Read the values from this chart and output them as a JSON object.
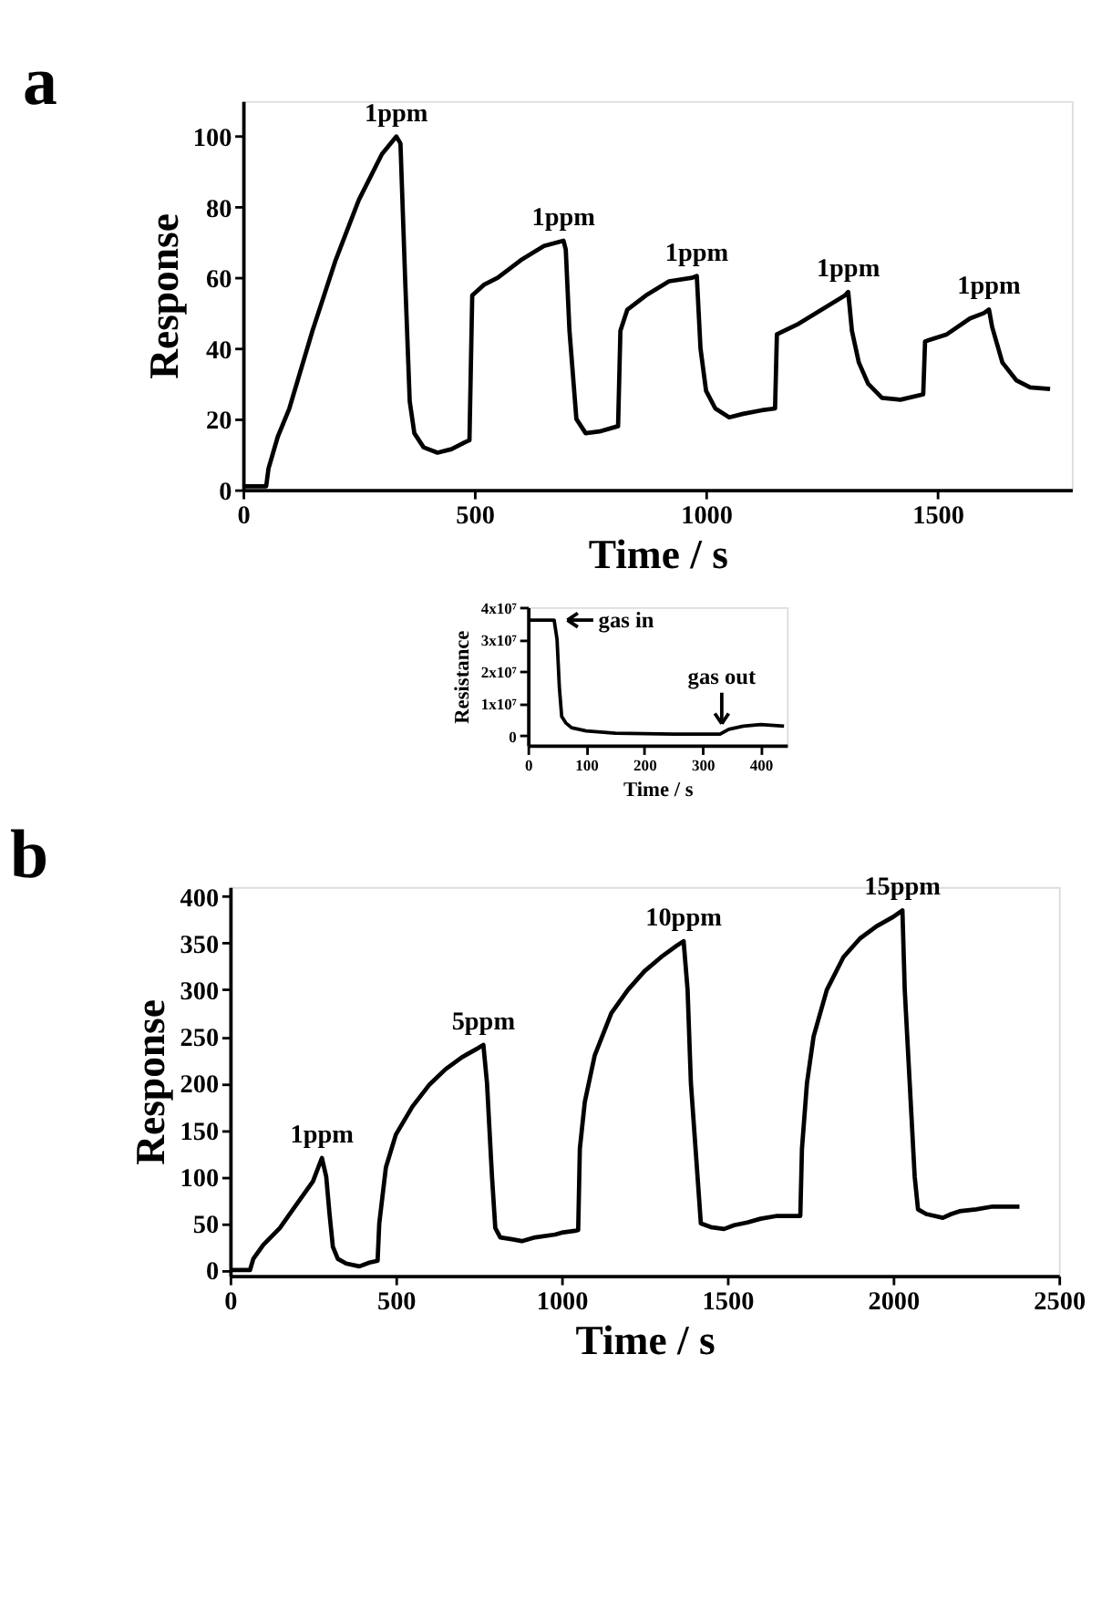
{
  "chart_data": [
    {
      "type": "line",
      "title": "a",
      "xlabel": "Time / s",
      "ylabel": "Response",
      "xlim": [
        0,
        1790
      ],
      "ylim": [
        0,
        110
      ],
      "xticks": [
        0,
        500,
        1000,
        1500
      ],
      "yticks": [
        0,
        20,
        40,
        60,
        80,
        100
      ],
      "grid": false,
      "marker": "none",
      "line_style": "solid",
      "annotations": [
        {
          "text": "1ppm",
          "x": 331,
          "y": 100
        },
        {
          "text": "1ppm",
          "x": 692,
          "y": 70.5
        },
        {
          "text": "1ppm",
          "x": 980,
          "y": 60.5
        },
        {
          "text": "1ppm",
          "x": 1307,
          "y": 56
        },
        {
          "text": "1ppm",
          "x": 1611,
          "y": 51
        }
      ],
      "series": [
        {
          "color": "#000000",
          "x": [
            0,
            50,
            55,
            75,
            100,
            150,
            200,
            250,
            300,
            331,
            340,
            350,
            360,
            370,
            390,
            420,
            450,
            480,
            489,
            495,
            520,
            550,
            600,
            650,
            692,
            697,
            705,
            720,
            740,
            770,
            810,
            815,
            830,
            870,
            920,
            970,
            980,
            988,
            1000,
            1020,
            1050,
            1080,
            1120,
            1149,
            1153,
            1200,
            1250,
            1300,
            1307,
            1315,
            1330,
            1350,
            1380,
            1420,
            1469,
            1473,
            1520,
            1570,
            1600,
            1611,
            1618,
            1640,
            1670,
            1700,
            1743
          ],
          "values": [
            1,
            1,
            6,
            15,
            23,
            45,
            65,
            82,
            95,
            100,
            98,
            60,
            25,
            16,
            12,
            10.5,
            11.5,
            13.5,
            14,
            55,
            58,
            60,
            65,
            69,
            70.5,
            68,
            45,
            20,
            16,
            16.5,
            18,
            45,
            51,
            55,
            59,
            60,
            60.5,
            40,
            28,
            23,
            20.5,
            21.5,
            22.5,
            23,
            44,
            47,
            51,
            55,
            56,
            45,
            36,
            30,
            26,
            25.5,
            27,
            42,
            44,
            48.5,
            50,
            51,
            46,
            36,
            31,
            29,
            28.5
          ]
        }
      ]
    },
    {
      "type": "line",
      "xlabel": "Time / s",
      "ylabel": "Resistance",
      "xlim": [
        0,
        445
      ],
      "ylim": [
        -3000000,
        40000000
      ],
      "xticks": [
        0,
        100,
        200,
        300,
        400
      ],
      "yticks": [
        0,
        {
          "value": 10000000,
          "label": "1x10⁷"
        },
        {
          "value": 20000000,
          "label": "2x10⁷"
        },
        {
          "value": 30000000,
          "label": "3x10⁷"
        },
        {
          "value": 40000000,
          "label": "4x10⁷"
        }
      ],
      "grid": false,
      "marker": "none",
      "line_style": "solid",
      "annotations": [
        {
          "text": "gas in",
          "x": 50,
          "y": 36000000
        },
        {
          "text": "gas out",
          "x": 333,
          "y": 500000
        }
      ],
      "series": [
        {
          "color": "#000000",
          "x": [
            0,
            45,
            50,
            54,
            58,
            65,
            75,
            100,
            150,
            250,
            330,
            345,
            370,
            400,
            440
          ],
          "values": [
            36000000,
            36000000,
            30000000,
            15000000,
            6000000,
            4000000,
            2500000,
            1500000,
            800000,
            500000,
            500000,
            2000000,
            3000000,
            3500000,
            3000000
          ]
        }
      ]
    },
    {
      "type": "line",
      "title": "b",
      "xlabel": "Time / s",
      "ylabel": "Response",
      "xlim": [
        0,
        2500
      ],
      "ylim": [
        -6,
        410
      ],
      "xticks": [
        0,
        500,
        1000,
        1500,
        2000,
        2500
      ],
      "yticks": [
        0,
        50,
        100,
        150,
        200,
        250,
        300,
        350,
        400
      ],
      "grid": false,
      "marker": "none",
      "line_style": "solid",
      "annotations": [
        {
          "text": "1ppm",
          "x": 277,
          "y": 120
        },
        {
          "text": "5ppm",
          "x": 764,
          "y": 241
        },
        {
          "text": "10ppm",
          "x": 1368,
          "y": 352
        },
        {
          "text": "15ppm",
          "x": 2028,
          "y": 385
        }
      ],
      "series": [
        {
          "color": "#000000",
          "x": [
            0,
            60,
            70,
            100,
            150,
            200,
            250,
            277,
            290,
            300,
            310,
            325,
            350,
            390,
            420,
            445,
            450,
            470,
            500,
            550,
            600,
            650,
            700,
            750,
            764,
            775,
            790,
            800,
            815,
            850,
            880,
            920,
            980,
            1000,
            1040,
            1050,
            1055,
            1070,
            1100,
            1150,
            1200,
            1250,
            1300,
            1350,
            1368,
            1380,
            1390,
            1410,
            1420,
            1450,
            1490,
            1520,
            1560,
            1600,
            1650,
            1700,
            1720,
            1725,
            1740,
            1760,
            1800,
            1850,
            1900,
            1950,
            2000,
            2028,
            2035,
            2050,
            2065,
            2075,
            2100,
            2150,
            2175,
            2200,
            2250,
            2300,
            2350,
            2381
          ],
          "values": [
            0,
            0,
            12,
            27,
            45,
            70,
            95,
            120,
            100,
            60,
            25,
            12,
            7,
            4,
            8,
            10,
            50,
            110,
            145,
            175,
            198,
            215,
            228,
            238,
            241,
            200,
            100,
            45,
            35,
            33,
            31,
            35,
            38,
            40,
            42,
            43,
            130,
            180,
            230,
            275,
            300,
            320,
            335,
            348,
            352,
            300,
            200,
            100,
            50,
            46,
            44,
            48,
            51,
            55,
            58,
            58,
            58,
            130,
            200,
            250,
            300,
            335,
            355,
            368,
            378,
            385,
            300,
            200,
            100,
            65,
            60,
            56,
            60,
            63,
            65,
            68,
            68,
            68
          ]
        }
      ]
    }
  ]
}
